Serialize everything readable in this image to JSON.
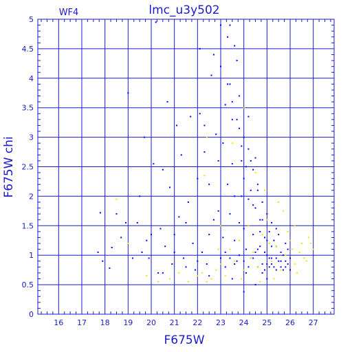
{
  "chart_data": {
    "type": "scatter",
    "title": "lmc_u3y502",
    "panel_label": "WF4",
    "xlabel": "F675W",
    "ylabel": "F675W chi",
    "xlim": [
      15.1,
      27.9
    ],
    "ylim": [
      0,
      5
    ],
    "x_ticks": [
      16,
      17,
      18,
      19,
      20,
      21,
      22,
      23,
      24,
      25,
      26,
      27
    ],
    "y_ticks": [
      0,
      0.5,
      1,
      1.5,
      2,
      2.5,
      3,
      3.5,
      4,
      4.5,
      5
    ],
    "y_tick_labels": [
      "0",
      "0.5",
      "1",
      "1.5",
      "2",
      "2.5",
      "3",
      "3.5",
      "4",
      "4.5",
      "5"
    ],
    "grid": true,
    "colors": {
      "axis": "#1a1acc",
      "blue_points": "#0000ff",
      "yellow_points": "#e6e600"
    },
    "series": [
      {
        "color": "#0000ff",
        "points": [
          [
            17.8,
            1.72
          ],
          [
            17.7,
            1.05
          ],
          [
            17.9,
            0.9
          ],
          [
            18.2,
            0.78
          ],
          [
            18.3,
            1.13
          ],
          [
            18.5,
            1.7
          ],
          [
            18.7,
            1.3
          ],
          [
            18.9,
            1.55
          ],
          [
            19.0,
            3.75
          ],
          [
            19.2,
            0.95
          ],
          [
            19.4,
            1.55
          ],
          [
            19.5,
            2.0
          ],
          [
            19.6,
            1.05
          ],
          [
            19.7,
            3.0
          ],
          [
            19.8,
            1.25
          ],
          [
            19.9,
            0.95
          ],
          [
            20.0,
            1.35
          ],
          [
            20.1,
            2.55
          ],
          [
            20.2,
            4.95
          ],
          [
            20.3,
            0.7
          ],
          [
            20.4,
            1.45
          ],
          [
            20.5,
            2.45
          ],
          [
            20.6,
            1.15
          ],
          [
            20.7,
            3.6
          ],
          [
            20.8,
            2.15
          ],
          [
            20.9,
            0.85
          ],
          [
            21.0,
            1.05
          ],
          [
            21.1,
            3.2
          ],
          [
            21.2,
            1.65
          ],
          [
            21.3,
            2.7
          ],
          [
            21.4,
            0.95
          ],
          [
            21.5,
            1.55
          ],
          [
            21.6,
            1.9
          ],
          [
            21.7,
            3.35
          ],
          [
            21.8,
            1.2
          ],
          [
            21.9,
            0.75
          ],
          [
            22.0,
            2.3
          ],
          [
            22.1,
            3.4
          ],
          [
            22.2,
            1.05
          ],
          [
            22.3,
            2.75
          ],
          [
            22.4,
            0.85
          ],
          [
            22.5,
            1.35
          ],
          [
            22.6,
            4.05
          ],
          [
            22.7,
            4.4
          ],
          [
            22.8,
            3.05
          ],
          [
            22.9,
            1.75
          ],
          [
            23.0,
            0.95
          ],
          [
            23.1,
            2.9
          ],
          [
            23.2,
            3.55
          ],
          [
            23.3,
            4.7
          ],
          [
            23.4,
            3.9
          ],
          [
            23.5,
            2.55
          ],
          [
            23.6,
            1.25
          ],
          [
            23.7,
            4.3
          ],
          [
            23.8,
            3.15
          ],
          [
            23.9,
            2.0
          ],
          [
            24.0,
            1.45
          ],
          [
            24.1,
            0.7
          ],
          [
            24.2,
            3.35
          ],
          [
            24.3,
            2.6
          ],
          [
            24.4,
            1.85
          ],
          [
            24.5,
            1.05
          ],
          [
            24.6,
            2.2
          ],
          [
            24.7,
            1.6
          ],
          [
            24.8,
            0.85
          ],
          [
            24.9,
            1.3
          ],
          [
            25.0,
            1.7
          ],
          [
            25.1,
            0.95
          ],
          [
            25.2,
            1.15
          ],
          [
            25.3,
            0.8
          ],
          [
            25.4,
            1.45
          ],
          [
            25.5,
            0.9
          ],
          [
            25.6,
            1.05
          ],
          [
            25.7,
            0.75
          ],
          [
            25.8,
            1.2
          ],
          [
            25.9,
            0.85
          ],
          [
            22.1,
            4.5
          ],
          [
            22.3,
            3.2
          ],
          [
            22.5,
            2.2
          ],
          [
            22.7,
            1.6
          ],
          [
            22.9,
            2.6
          ],
          [
            23.0,
            4.2
          ],
          [
            23.1,
            1.3
          ],
          [
            23.2,
            0.8
          ],
          [
            23.3,
            2.2
          ],
          [
            23.4,
            1.7
          ],
          [
            23.5,
            3.3
          ],
          [
            23.6,
            2.0
          ],
          [
            23.7,
            0.9
          ],
          [
            23.8,
            1.55
          ],
          [
            23.9,
            2.85
          ],
          [
            24.0,
            2.3
          ],
          [
            24.1,
            1.1
          ],
          [
            24.2,
            1.95
          ],
          [
            24.3,
            0.95
          ],
          [
            24.4,
            1.35
          ],
          [
            24.5,
            2.65
          ],
          [
            24.6,
            0.8
          ],
          [
            24.7,
            1.15
          ],
          [
            24.8,
            1.9
          ],
          [
            24.9,
            0.75
          ],
          [
            25.0,
            1.0
          ],
          [
            25.1,
            1.4
          ],
          [
            25.2,
            0.85
          ],
          [
            25.3,
            1.25
          ],
          [
            25.4,
            0.95
          ],
          [
            25.5,
            1.35
          ],
          [
            25.6,
            0.8
          ],
          [
            25.7,
            1.0
          ],
          [
            25.8,
            0.9
          ],
          [
            25.9,
            1.1
          ],
          [
            26.0,
            0.75
          ],
          [
            23.0,
            4.9
          ],
          [
            23.4,
            4.9
          ],
          [
            23.6,
            4.55
          ],
          [
            23.8,
            3.7
          ],
          [
            24.0,
            3.0
          ],
          [
            24.2,
            2.8
          ],
          [
            24.4,
            2.45
          ],
          [
            24.6,
            2.1
          ],
          [
            24.8,
            1.6
          ],
          [
            25.0,
            1.25
          ],
          [
            25.2,
            1.55
          ],
          [
            25.4,
            1.15
          ],
          [
            23.3,
            3.9
          ],
          [
            23.5,
            3.6
          ],
          [
            23.7,
            3.3
          ],
          [
            23.9,
            2.6
          ],
          [
            24.1,
            2.5
          ],
          [
            24.3,
            2.1
          ],
          [
            24.5,
            1.8
          ],
          [
            24.7,
            1.4
          ],
          [
            24.9,
            1.05
          ],
          [
            25.1,
            0.8
          ],
          [
            23.2,
            1.05
          ],
          [
            23.4,
            0.95
          ],
          [
            23.6,
            0.85
          ],
          [
            23.8,
            1.0
          ],
          [
            24.0,
            0.9
          ],
          [
            24.2,
            0.8
          ],
          [
            24.4,
            0.95
          ],
          [
            24.6,
            1.1
          ],
          [
            24.8,
            0.7
          ],
          [
            25.0,
            0.85
          ],
          [
            25.2,
            0.95
          ],
          [
            25.4,
            0.75
          ],
          [
            25.6,
            0.9
          ],
          [
            25.8,
            0.8
          ],
          [
            26.0,
            0.95
          ],
          [
            24.0,
            0.38
          ],
          [
            24.5,
            0.5
          ],
          [
            25.0,
            0.6
          ],
          [
            23.5,
            0.6
          ],
          [
            22.5,
            0.65
          ],
          [
            22.0,
            0.9
          ],
          [
            21.5,
            0.8
          ],
          [
            21.0,
            1.35
          ],
          [
            20.5,
            0.7
          ]
        ]
      },
      {
        "color": "#e6e600",
        "points": [
          [
            18.5,
            1.95
          ],
          [
            19.0,
            1.2
          ],
          [
            19.8,
            0.65
          ],
          [
            20.3,
            0.55
          ],
          [
            20.8,
            0.6
          ],
          [
            21.2,
            0.7
          ],
          [
            21.6,
            0.55
          ],
          [
            22.0,
            0.65
          ],
          [
            22.2,
            0.7
          ],
          [
            22.4,
            0.55
          ],
          [
            22.6,
            0.6
          ],
          [
            22.8,
            0.75
          ],
          [
            23.0,
            0.85
          ],
          [
            23.2,
            0.65
          ],
          [
            23.4,
            1.1
          ],
          [
            23.6,
            0.9
          ],
          [
            23.8,
            1.25
          ],
          [
            24.0,
            0.75
          ],
          [
            24.2,
            1.5
          ],
          [
            24.4,
            1.05
          ],
          [
            24.6,
            0.8
          ],
          [
            24.8,
            1.35
          ],
          [
            25.0,
            1.6
          ],
          [
            25.2,
            0.9
          ],
          [
            25.4,
            1.15
          ],
          [
            25.6,
            0.75
          ],
          [
            25.8,
            1.0
          ],
          [
            26.0,
            1.25
          ],
          [
            26.2,
            0.85
          ],
          [
            26.4,
            1.05
          ],
          [
            26.6,
            0.95
          ],
          [
            26.8,
            1.3
          ],
          [
            27.0,
            1.1
          ],
          [
            26.3,
            0.7
          ],
          [
            26.7,
            0.9
          ],
          [
            25.9,
            1.4
          ],
          [
            25.5,
            1.9
          ],
          [
            25.7,
            1.75
          ],
          [
            24.9,
            2.1
          ],
          [
            24.5,
            2.4
          ],
          [
            22.4,
            3.0
          ],
          [
            22.3,
            2.35
          ],
          [
            23.0,
            1.5
          ],
          [
            24.0,
            3.5
          ],
          [
            23.5,
            2.9
          ],
          [
            26.1,
            1.1
          ],
          [
            26.5,
            1.2
          ],
          [
            25.3,
            0.6
          ],
          [
            24.7,
            0.55
          ],
          [
            23.9,
            0.6
          ],
          [
            26.9,
            1.2
          ],
          [
            26.2,
            1.5
          ],
          [
            25.1,
            1.2
          ],
          [
            24.3,
            0.95
          ],
          [
            22.9,
            1.1
          ]
        ]
      }
    ]
  }
}
